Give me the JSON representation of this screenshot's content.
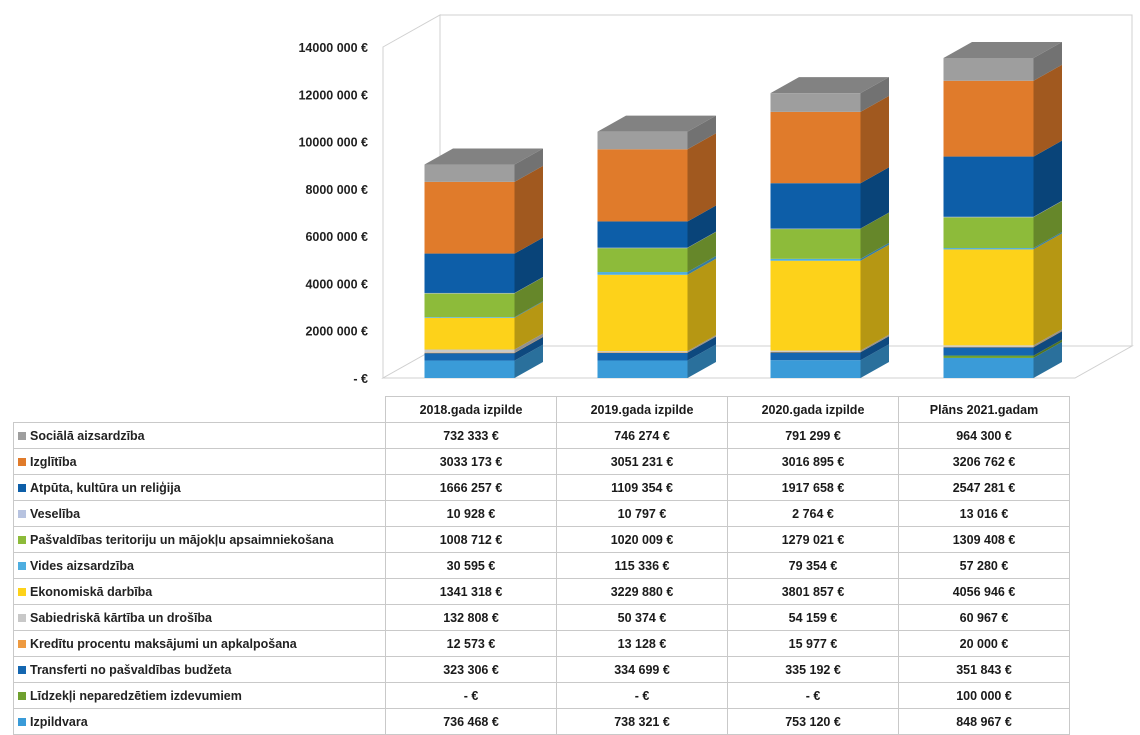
{
  "chart_data": {
    "type": "bar",
    "stacked": true,
    "three_d": true,
    "currency_suffix": "€",
    "categories": [
      "2018.gada izpilde",
      "2019.gada izpilde",
      "2020.gada izpilde",
      "Plāns 2021.gadam"
    ],
    "y_ticks": [
      {
        "value": 0,
        "label": "-  €"
      },
      {
        "value": 2000000,
        "label": "2000 000 €"
      },
      {
        "value": 4000000,
        "label": "4000 000 €"
      },
      {
        "value": 6000000,
        "label": "6000 000 €"
      },
      {
        "value": 8000000,
        "label": "8000 000 €"
      },
      {
        "value": 10000000,
        "label": "10000 000 €"
      },
      {
        "value": 12000000,
        "label": "12000 000 €"
      },
      {
        "value": 14000000,
        "label": "14000 000 €"
      }
    ],
    "ylim": [
      0,
      14000000
    ],
    "legend_placement": "table-left",
    "series": [
      {
        "name": "Sociālā aizsardzība",
        "color": "#9e9e9e",
        "values": [
          732333,
          746274,
          791299,
          964300
        ],
        "labels": [
          "732 333 €",
          "746 274 €",
          "791 299 €",
          "964 300 €"
        ]
      },
      {
        "name": "Izglītība",
        "color": "#e07b2b",
        "values": [
          3033173,
          3051231,
          3016895,
          3206762
        ],
        "labels": [
          "3033 173 €",
          "3051 231 €",
          "3016 895 €",
          "3206 762 €"
        ]
      },
      {
        "name": "Atpūta, kultūra un reliģija",
        "color": "#0d5ea8",
        "values": [
          1666257,
          1109354,
          1917658,
          2547281
        ],
        "labels": [
          "1666 257 €",
          "1109 354 €",
          "1917 658 €",
          "2547 281 €"
        ]
      },
      {
        "name": "Veselība",
        "color": "#b7c3e0",
        "values": [
          10928,
          10797,
          2764,
          13016
        ],
        "labels": [
          "10 928 €",
          "10 797 €",
          "2 764 €",
          "13 016 €"
        ]
      },
      {
        "name": "Pašvaldības teritoriju un mājokļu apsaimniekošana",
        "color": "#8dbb3a",
        "values": [
          1008712,
          1020009,
          1279021,
          1309408
        ],
        "labels": [
          "1008 712 €",
          "1020 009 €",
          "1279 021 €",
          "1309 408 €"
        ]
      },
      {
        "name": "Vides aizsardzība",
        "color": "#4eaee0",
        "values": [
          30595,
          115336,
          79354,
          57280
        ],
        "labels": [
          "30 595 €",
          "115 336 €",
          "79 354 €",
          "57 280 €"
        ]
      },
      {
        "name": "Ekonomiskā darbība",
        "color": "#fdd21a",
        "values": [
          1341318,
          3229880,
          3801857,
          4056946
        ],
        "labels": [
          "1341 318 €",
          "3229 880 €",
          "3801 857 €",
          "4056 946 €"
        ]
      },
      {
        "name": "Sabiedriskā kārtība un drošība",
        "color": "#c8c8c8",
        "values": [
          132808,
          50374,
          54159,
          60967
        ],
        "labels": [
          "132 808 €",
          "50 374 €",
          "54 159 €",
          "60 967 €"
        ]
      },
      {
        "name": "Kredītu procentu maksājumi un apkalpošana",
        "color": "#ee9a40",
        "values": [
          12573,
          13128,
          15977,
          20000
        ],
        "labels": [
          "12 573 €",
          "13 128 €",
          "15 977 €",
          "20 000 €"
        ]
      },
      {
        "name": "Transferti no pašvaldības budžeta",
        "color": "#1466b0",
        "values": [
          323306,
          334699,
          335192,
          351843
        ],
        "labels": [
          "323 306 €",
          "334 699 €",
          "335 192 €",
          "351 843 €"
        ]
      },
      {
        "name": "Līdzekļi neparedzētiem izdevumiem",
        "color": "#6fa02e",
        "values": [
          0,
          0,
          0,
          100000
        ],
        "labels": [
          "-  €",
          "-  €",
          "-  €",
          "100 000 €"
        ]
      },
      {
        "name": "Izpildvara",
        "color": "#3a9bd8",
        "values": [
          736468,
          738321,
          753120,
          848967
        ],
        "labels": [
          "736 468 €",
          "738 321 €",
          "753 120 €",
          "848 967 €"
        ]
      }
    ]
  }
}
